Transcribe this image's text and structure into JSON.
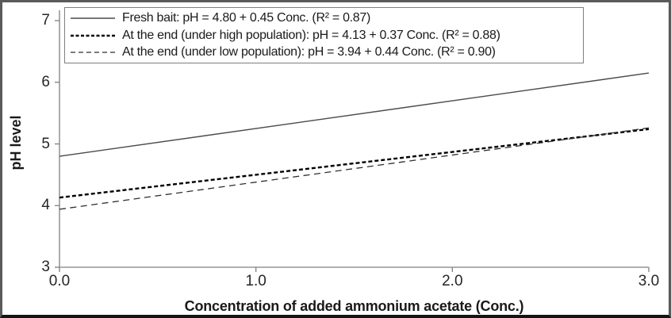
{
  "colors": {
    "background": "#ffffff",
    "axis": "#808080",
    "tick_text": "#262626",
    "title_text": "#1a1a1a",
    "frame_border": "#5a5a5a",
    "frame_bottom_border": "#141414",
    "legend_border": "#7f7f7f"
  },
  "chart_data": {
    "type": "line",
    "title": "",
    "xlabel": "Concentration of added ammonium acetate (Conc.)",
    "ylabel": "pH level",
    "xlim": [
      0.0,
      3.0
    ],
    "ylim": [
      3,
      7
    ],
    "x_tick_values": [
      0.0,
      1.0,
      2.0,
      3.0
    ],
    "x_tick_labels": [
      "0.0",
      "1.0",
      "2.0",
      "3.0"
    ],
    "y_tick_values": [
      3,
      4,
      5,
      6,
      7
    ],
    "y_tick_labels": [
      "3",
      "4",
      "5",
      "6",
      "7"
    ],
    "grid": false,
    "legend_position": "top-left-overlay",
    "series": [
      {
        "name": "Fresh bait",
        "legend_label": "Fresh bait: pH = 4.80 + 0.45 Conc. (R² = 0.87)",
        "equation": "pH = 4.80 + 0.45 Conc.",
        "intercept": 4.8,
        "slope": 0.45,
        "r_squared": 0.87,
        "x": [
          0.0,
          3.0
        ],
        "y": [
          4.8,
          6.15
        ],
        "line_style": "solid",
        "color": "#4a4a4a",
        "width": 1.4,
        "dash": ""
      },
      {
        "name": "At the end (under high population)",
        "legend_label": "At the end (under high population): pH = 4.13 + 0.37 Conc. (R² = 0.88)",
        "equation": "pH = 4.13 + 0.37 Conc.",
        "intercept": 4.13,
        "slope": 0.37,
        "r_squared": 0.88,
        "x": [
          0.0,
          3.0
        ],
        "y": [
          4.13,
          5.24
        ],
        "line_style": "dashed-bold",
        "color": "#000000",
        "width": 2.4,
        "dash": "5,3"
      },
      {
        "name": "At the end (under low population)",
        "legend_label": "At the end (under low population): pH = 3.94 + 0.44 Conc. (R² = 0.90)",
        "equation": "pH = 3.94 + 0.44 Conc.",
        "intercept": 3.94,
        "slope": 0.44,
        "r_squared": 0.9,
        "x": [
          0.0,
          3.0
        ],
        "y": [
          3.94,
          5.26
        ],
        "line_style": "dashed-thin",
        "color": "#2e2e2e",
        "width": 1.3,
        "dash": "8,5.5"
      }
    ]
  }
}
